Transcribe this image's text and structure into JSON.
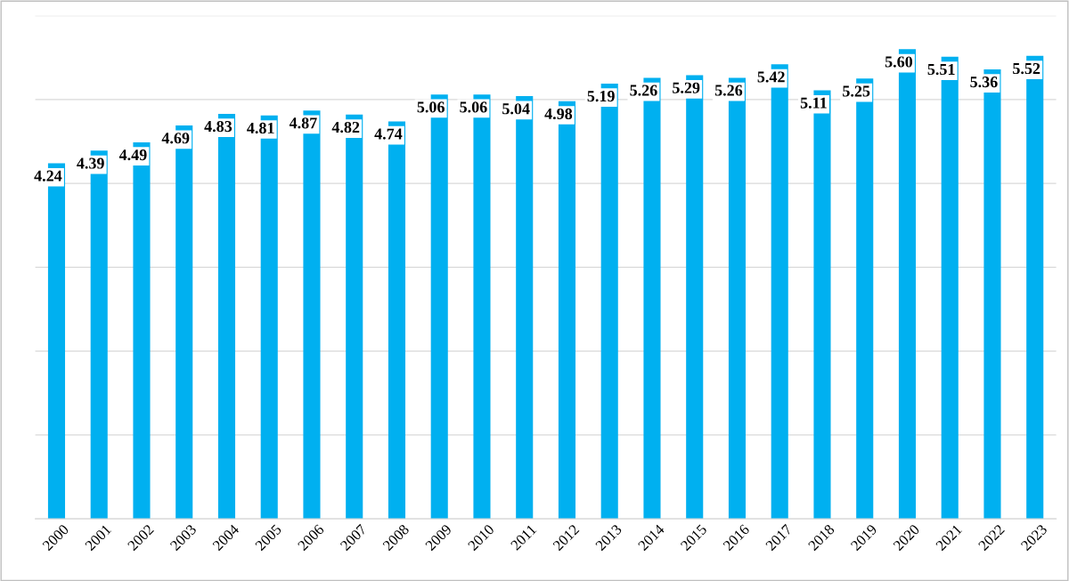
{
  "chart_data": {
    "type": "bar",
    "categories": [
      "2000",
      "2001",
      "2002",
      "2003",
      "2004",
      "2005",
      "2006",
      "2007",
      "2008",
      "2009",
      "2010",
      "2011",
      "2012",
      "2013",
      "2014",
      "2015",
      "2016",
      "2017",
      "2018",
      "2019",
      "2020",
      "2021",
      "2022",
      "2023"
    ],
    "values": [
      4.24,
      4.39,
      4.49,
      4.69,
      4.83,
      4.81,
      4.87,
      4.82,
      4.74,
      5.06,
      5.06,
      5.04,
      4.98,
      5.19,
      5.26,
      5.29,
      5.26,
      5.42,
      5.11,
      5.25,
      5.6,
      5.51,
      5.36,
      5.52
    ],
    "color": "#00b0f0",
    "ylim": [
      0,
      6
    ],
    "yticks": [
      {
        "value": 0,
        "label": null
      },
      {
        "value": 1,
        "label": null
      },
      {
        "value": 2,
        "label": null
      },
      {
        "value": 3,
        "label": null
      },
      {
        "value": 4,
        "label": null
      },
      {
        "value": 5,
        "label": null
      },
      {
        "value": 6,
        "label": null
      }
    ],
    "tick_labels": "x",
    "grid": "y",
    "value_labels": [
      "4.24",
      "4.39",
      "4.49",
      "4.69",
      "4.83",
      "4.81",
      "4.87",
      "4.82",
      "4.74",
      "5.06",
      "5.06",
      "5.04",
      "4.98",
      "5.19",
      "5.26",
      "5.29",
      "5.26",
      "5.42",
      "5.11",
      "5.25",
      "5.60",
      "5.51",
      "5.36",
      "5.52"
    ],
    "legend": false
  }
}
